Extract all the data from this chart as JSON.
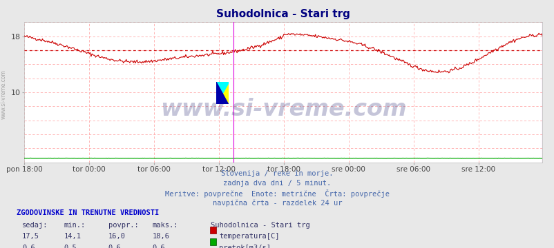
{
  "title": "Suhodolnica - Stari trg",
  "title_color": "#000080",
  "bg_color": "#e8e8e8",
  "plot_bg_color": "#ffffff",
  "grid_color": "#dddddd",
  "temp_color": "#cc0000",
  "flow_color": "#00aa00",
  "avg_line_color": "#cc0000",
  "vline_color": "#dd00dd",
  "ylim": [
    0,
    20
  ],
  "yticks": [
    0,
    2,
    4,
    6,
    8,
    10,
    12,
    14,
    16,
    18,
    20
  ],
  "avg_temp": 16.0,
  "x_tick_labels": [
    "pon 18:00",
    "tor 00:00",
    "tor 06:00",
    "tor 12:00",
    "tor 18:00",
    "sre 00:00",
    "sre 06:00",
    "sre 12:00"
  ],
  "x_tick_positions": [
    0,
    72,
    144,
    216,
    288,
    360,
    432,
    504
  ],
  "total_points": 576,
  "vline_pos": 232,
  "subtitle_lines": [
    "Slovenija / reke in morje.",
    "zadnja dva dni / 5 minut.",
    "Meritve: povprečne  Enote: metrične  Črta: povprečje",
    "navpična črta - razdelek 24 ur"
  ],
  "subtitle_color": "#4466aa",
  "table_header": "ZGODOVINSKE IN TRENUTNE VREDNOSTI",
  "table_header_color": "#0000cc",
  "col_labels": [
    "sedaj:",
    "min.:",
    "povpr.:",
    "maks.:"
  ],
  "col_color": "#333366",
  "legend_title": "Suhodolnica - Stari trg",
  "legend_color": "#333366",
  "row1_vals": [
    "17,5",
    "14,1",
    "16,0",
    "18,6"
  ],
  "row2_vals": [
    "0,6",
    "0,5",
    "0,6",
    "0,6"
  ],
  "row1_label": "temperatura[C]",
  "row2_label": "pretok[m3/s]",
  "watermark": "www.si-vreme.com",
  "watermark_color": "#1a1a6a",
  "watermark_alpha": 0.25,
  "watermark_fontsize": 24,
  "left_label": "www.si-vreme.com",
  "left_label_color": "#888888"
}
